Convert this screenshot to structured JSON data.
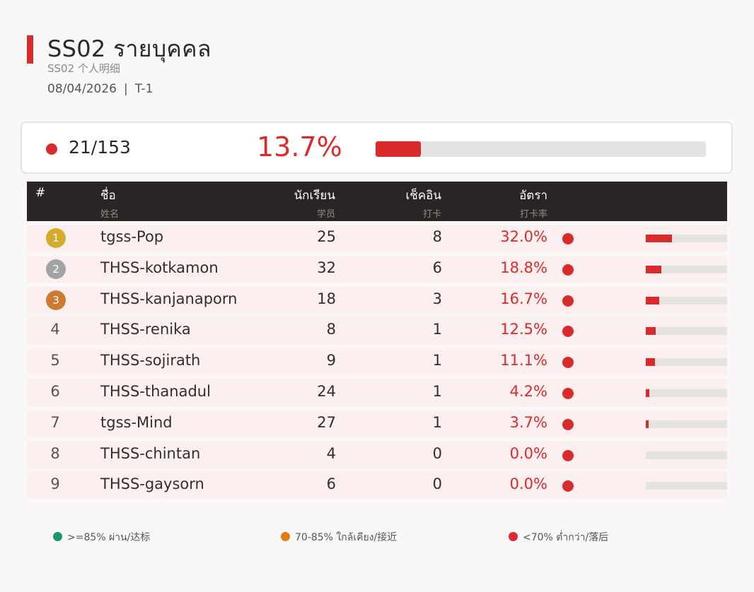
{
  "header": {
    "title": "SS02  รายบุคคล",
    "subtitle": "SS02  个人明细",
    "date": "08/04/2026",
    "separator": "|",
    "tag": "T-1"
  },
  "summary": {
    "count": "21/153",
    "percent": "13.7%",
    "fraction": 0.137,
    "status_color": "#d92b2b"
  },
  "table": {
    "columns": [
      {
        "th": "#",
        "zh": ""
      },
      {
        "th": "ชื่อ",
        "zh": "姓名"
      },
      {
        "th": "นักเรียน",
        "zh": "学员"
      },
      {
        "th": "เช็คอิน",
        "zh": "打卡"
      },
      {
        "th": "อัตรา",
        "zh": "打卡率"
      }
    ],
    "rows": [
      {
        "rank": "1",
        "name": "tgss-Pop",
        "students": "25",
        "checkins": "8",
        "rate": "32.0%",
        "fraction": 0.32,
        "medal": "#d4ac2b"
      },
      {
        "rank": "2",
        "name": "THSS-kotkamon",
        "students": "32",
        "checkins": "6",
        "rate": "18.8%",
        "fraction": 0.188,
        "medal": "#a3a3a3"
      },
      {
        "rank": "3",
        "name": "THSS-kanjanaporn",
        "students": "18",
        "checkins": "3",
        "rate": "16.7%",
        "fraction": 0.167,
        "medal": "#cd7a33"
      },
      {
        "rank": "4",
        "name": "THSS-renika",
        "students": "8",
        "checkins": "1",
        "rate": "12.5%",
        "fraction": 0.125
      },
      {
        "rank": "5",
        "name": "THSS-sojirath",
        "students": "9",
        "checkins": "1",
        "rate": "11.1%",
        "fraction": 0.111
      },
      {
        "rank": "6",
        "name": "THSS-thanadul",
        "students": "24",
        "checkins": "1",
        "rate": "4.2%",
        "fraction": 0.042
      },
      {
        "rank": "7",
        "name": "tgss-Mind",
        "students": "27",
        "checkins": "1",
        "rate": "3.7%",
        "fraction": 0.037
      },
      {
        "rank": "8",
        "name": "THSS-chintan",
        "students": "4",
        "checkins": "0",
        "rate": "0.0%",
        "fraction": 0.0
      },
      {
        "rank": "9",
        "name": "THSS-gaysorn",
        "students": "6",
        "checkins": "0",
        "rate": "0.0%",
        "fraction": 0.0
      }
    ]
  },
  "legend": [
    {
      "label": ">=85% ผ่าน/达标",
      "color": "#13976b"
    },
    {
      "label": "70-85% ใกล้เคียง/接近",
      "color": "#e07c12"
    },
    {
      "label": "<70% ต่ำกว่า/落后",
      "color": "#d92b2b"
    }
  ],
  "colors": {
    "accent": "#d92b2b",
    "header_bg": "#2a2524",
    "row_bg": "#fcefef"
  }
}
